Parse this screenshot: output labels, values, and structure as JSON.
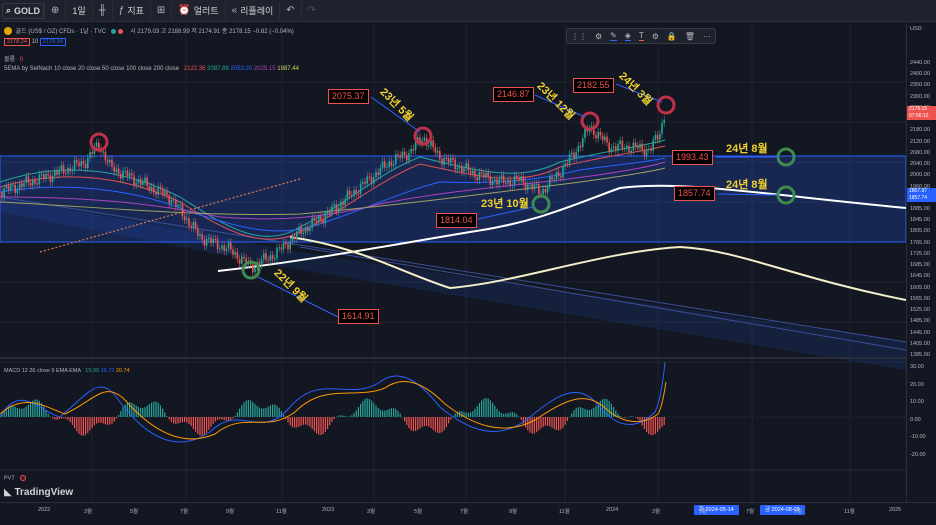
{
  "toolbar": {
    "symbol": "GOLD",
    "interval": "1일",
    "indicators_label": "지표",
    "alert_label": "얼러트",
    "replay_label": "리플레이"
  },
  "legend": {
    "title": "골드 (US$ / OZ) CFDs · 1날 · TVC",
    "ohlc": "시 2179.03  고 2188.99  저 2174.91  종 2178.15  −0.82 (−0.04%)",
    "sell_price": "2178.24",
    "spread": "10",
    "buy_price": "2178.34",
    "volume_label": "볼륨",
    "volume_value": "0",
    "ema_name": "5EMA by SelNach  10 close 20 close 50 close 100 close 200 close",
    "ema_values": [
      "2122.36",
      "2087.88",
      "2053.20",
      "2025.15",
      "1987.44"
    ]
  },
  "price_axis": {
    "currency": "USD",
    "ticks": [
      "2440.00",
      "2400.00",
      "2350.00",
      "2300.00",
      "2260.00",
      "2220.00",
      "2180.00",
      "2120.00",
      "2080.00",
      "2040.00",
      "2000.00",
      "1960.00",
      "1920.00",
      "1885.00",
      "1845.00",
      "1805.00",
      "1765.00",
      "1725.00",
      "1685.00",
      "1645.00",
      "1605.00",
      "1565.00",
      "1525.00",
      "1485.00",
      "1445.00",
      "1405.00",
      "1385.00"
    ],
    "last_price": "2178.15",
    "countdown": "07:56:10",
    "level_1": "1867.97",
    "level_2": "1857.74",
    "macd_ticks": [
      "30.00",
      "20.00",
      "10.00",
      "0.00",
      "-10.00",
      "-20.00"
    ]
  },
  "annotations": {
    "prices": [
      {
        "id": "p2075",
        "text": "2075.37"
      },
      {
        "id": "p2146",
        "text": "2146.87"
      },
      {
        "id": "p2182",
        "text": "2182.55"
      },
      {
        "id": "p1993",
        "text": "1993.43"
      },
      {
        "id": "p1857",
        "text": "1857.74"
      },
      {
        "id": "p1814",
        "text": "1814.04"
      },
      {
        "id": "p1614",
        "text": "1614.91"
      }
    ],
    "dates": {
      "may23": "23년 5월",
      "dec23": "23년 12월",
      "mar24": "24년 3월",
      "aug24a": "24년 8월",
      "aug24b": "24년 8월",
      "oct23": "23년 10월",
      "sep22": "22년 9월"
    }
  },
  "macd": {
    "label": "MACD  12 26 close 9 EMA EMA",
    "v1": "15.99",
    "v2": "16.72",
    "v3": "20.74"
  },
  "pvt": {
    "label": "PVT"
  },
  "logo": "TradingView",
  "time_axis": {
    "ticks": [
      "2022",
      "3월",
      "5월",
      "7월",
      "9월",
      "11월",
      "2023",
      "3월",
      "5월",
      "7월",
      "9월",
      "11월",
      "2024",
      "3월",
      "5월",
      "7월",
      "9월",
      "11월",
      "2025"
    ],
    "tag_start": "화  2024-05-14",
    "tag_end": "금  2024-08-09"
  },
  "colors": {
    "background": "#131722",
    "up": "#26a69a",
    "down": "#ef5350",
    "label_yellow": "#f0d030",
    "channel_blue": "#2962ff"
  }
}
